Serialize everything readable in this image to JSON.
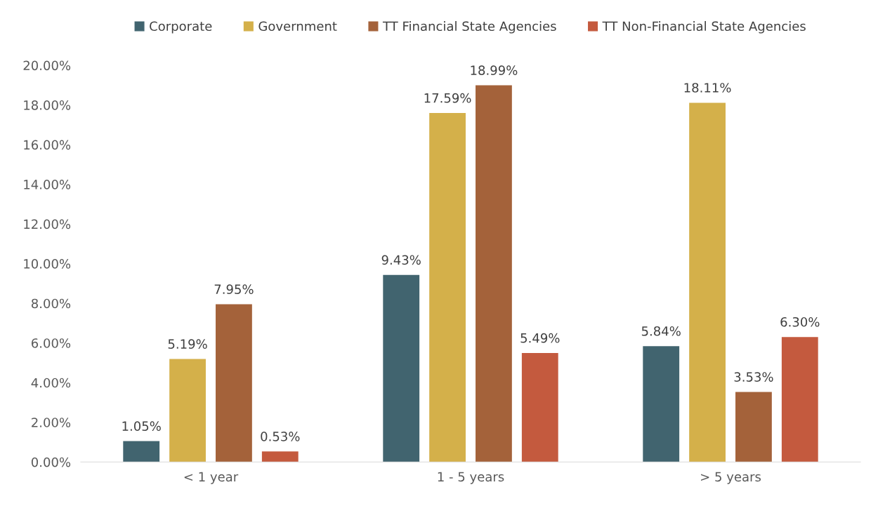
{
  "chart_data": {
    "type": "bar",
    "categories": [
      "< 1 year",
      "1 - 5 years",
      "> 5 years"
    ],
    "series": [
      {
        "name": "Corporate",
        "color": "#41646f",
        "values": [
          1.05,
          9.43,
          5.84
        ],
        "value_labels": [
          "1.05%",
          "9.43%",
          "5.84%"
        ]
      },
      {
        "name": "Government",
        "color": "#d4b04a",
        "values": [
          5.19,
          17.59,
          18.11
        ],
        "value_labels": [
          "5.19%",
          "17.59%",
          "18.11%"
        ]
      },
      {
        "name": "TT Financial State Agencies",
        "color": "#a4623a",
        "values": [
          7.95,
          18.99,
          3.53
        ],
        "value_labels": [
          "7.95%",
          "18.99%",
          "3.53%"
        ]
      },
      {
        "name": "TT Non-Financial State Agencies",
        "color": "#c45a3e",
        "values": [
          0.53,
          5.49,
          6.3
        ],
        "value_labels": [
          "0.53%",
          "5.49%",
          "6.30%"
        ]
      }
    ],
    "ylim": [
      0,
      20
    ],
    "yticks": [
      {
        "value": 0,
        "label": "0.00%"
      },
      {
        "value": 2,
        "label": "2.00%"
      },
      {
        "value": 4,
        "label": "4.00%"
      },
      {
        "value": 6,
        "label": "6.00%"
      },
      {
        "value": 8,
        "label": "8.00%"
      },
      {
        "value": 10,
        "label": "10.00%"
      },
      {
        "value": 12,
        "label": "12.00%"
      },
      {
        "value": 14,
        "label": "14.00%"
      },
      {
        "value": 16,
        "label": "16.00%"
      },
      {
        "value": 18,
        "label": "18.00%"
      },
      {
        "value": 20,
        "label": "20.00%"
      }
    ],
    "grid": false,
    "legend": "top"
  }
}
